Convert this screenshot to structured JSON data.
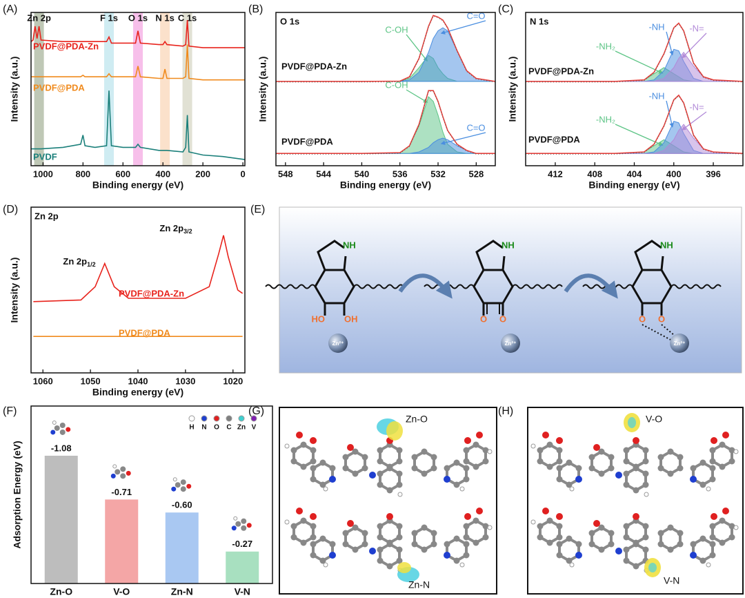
{
  "chart_data": [
    {
      "type": "line",
      "panel": "(A)",
      "x_label": "Binding energy (eV)",
      "y_label": "Intensity (a.u.)",
      "xlim": [
        1060,
        -10
      ],
      "xticks": [
        1000,
        800,
        600,
        400,
        200,
        0
      ],
      "ylim": [
        0,
        100
      ],
      "highlights": [
        {
          "label": "Zn 2p",
          "x": 1020,
          "color": "#8a9a7a"
        },
        {
          "label": "F 1s",
          "x": 670,
          "color": "#a8dde8"
        },
        {
          "label": "O 1s",
          "x": 525,
          "color": "#f08ad8"
        },
        {
          "label": "N 1s",
          "x": 390,
          "color": "#f8c8a0"
        },
        {
          "label": "C 1s",
          "x": 278,
          "color": "#c8c8b0"
        }
      ],
      "x": [
        1060,
        1050,
        1040,
        1030,
        1020,
        1010,
        900,
        812,
        800,
        790,
        740,
        682,
        670,
        658,
        600,
        537,
        525,
        513,
        420,
        400,
        390,
        380,
        300,
        286,
        278,
        270,
        200,
        100,
        -10
      ],
      "series": [
        {
          "name": "PVDF@PDA-Zn",
          "color": "#e8231c",
          "values": [
            81,
            82,
            91,
            83,
            91,
            82,
            81,
            81,
            81,
            81,
            81,
            81,
            84,
            80,
            80,
            80,
            88,
            80,
            79,
            79,
            81,
            79,
            78,
            79,
            95,
            78,
            77,
            77,
            77
          ]
        },
        {
          "name": "PVDF@PDA",
          "color": "#f08a1c",
          "values": [
            58,
            58,
            58,
            58,
            58,
            58,
            58,
            58,
            59,
            58,
            58,
            58,
            60,
            58,
            58,
            58,
            65,
            58,
            57,
            57,
            63,
            57,
            57,
            58,
            79,
            57,
            56,
            56,
            56
          ]
        },
        {
          "name": "PVDF",
          "color": "#1a7f7a",
          "values": [
            11,
            11,
            11,
            11,
            11,
            11,
            12,
            14,
            20,
            13,
            12,
            13,
            49,
            13,
            12,
            12,
            14,
            12,
            10,
            10,
            10,
            10,
            9,
            12,
            33,
            9,
            7,
            6,
            4
          ]
        }
      ]
    },
    {
      "type": "line",
      "panel": "(B)",
      "title": "O 1s",
      "x_label": "Binding energy (eV)",
      "y_label": "Intensity (a.u.)",
      "xlim": [
        549,
        526
      ],
      "xticks": [
        548,
        544,
        540,
        536,
        532,
        528
      ],
      "ylim": [
        0,
        100
      ],
      "x": [
        549,
        540,
        536,
        535,
        534,
        533,
        532.5,
        532,
        531.5,
        531,
        530,
        529,
        528,
        526
      ],
      "samples": [
        {
          "label": "PVDF@PDA-Zn",
          "series": [
            {
              "name": "C-OH",
              "color": "#5cc485",
              "values": [
                55,
                55,
                55.2,
                57,
                64,
                72,
                70,
                64,
                60,
                57,
                55,
                55,
                55,
                55
              ]
            },
            {
              "name": "C=O",
              "color": "#4a8ee0",
              "values": [
                55,
                55,
                55,
                56,
                61,
                74,
                83,
                88,
                90,
                88,
                75,
                62,
                57,
                55
              ]
            },
            {
              "color": "#e8413c",
              "values": [
                55,
                55,
                55.2,
                58,
                70,
                91,
                98,
                97,
                95,
                90,
                75,
                62,
                57,
                55
              ]
            }
          ]
        },
        {
          "label": "PVDF@PDA",
          "series": [
            {
              "name": "C-OH",
              "color": "#5cc485",
              "values": [
                8,
                8,
                8.5,
                13,
                26,
                45,
                42,
                33,
                22,
                14,
                9,
                8,
                8,
                8
              ]
            },
            {
              "name": "C=O",
              "color": "#4a8ee0",
              "values": [
                8,
                8,
                8,
                8,
                9,
                12,
                15,
                17,
                18,
                17,
                13,
                10,
                8,
                8
              ]
            },
            {
              "color": "#e8413c",
              "values": [
                8,
                8,
                8.5,
                13,
                27,
                49,
                49,
                42,
                32,
                23,
                14,
                10,
                8,
                8
              ]
            }
          ]
        }
      ]
    },
    {
      "type": "line",
      "panel": "(C)",
      "title": "N 1s",
      "x_label": "Binding energy (eV)",
      "y_label": "Intensity (a.u.)",
      "xlim": [
        415,
        393
      ],
      "xticks": [
        412,
        408,
        404,
        400,
        396
      ],
      "ylim": [
        0,
        100
      ],
      "x": [
        415,
        406,
        403,
        402,
        401,
        400,
        399.5,
        399,
        398,
        397,
        396,
        393
      ],
      "samples": [
        {
          "label": "PVDF@PDA-Zn",
          "series": [
            {
              "name": "-NH₂",
              "color": "#5cc485",
              "values": [
                55,
                55,
                56,
                60,
                64,
                60,
                58,
                56,
                55,
                55,
                55,
                55
              ]
            },
            {
              "name": "-NH",
              "color": "#4a8ee0",
              "values": [
                55,
                55,
                55,
                56,
                62,
                76,
                75,
                68,
                57,
                55,
                55,
                55
              ]
            },
            {
              "name": "-N=",
              "color": "#b28ad8",
              "values": [
                55,
                55,
                55,
                55,
                57,
                64,
                70,
                74,
                65,
                58,
                56,
                55
              ]
            },
            {
              "color": "#e8413c",
              "values": [
                55,
                55,
                56,
                61,
                73,
                90,
                93,
                88,
                67,
                58,
                56,
                55
              ]
            }
          ]
        },
        {
          "label": "PVDF@PDA",
          "series": [
            {
              "name": "-NH₂",
              "color": "#5cc485",
              "values": [
                8,
                8,
                9,
                13,
                17,
                13,
                11,
                9,
                8,
                8,
                8,
                8
              ]
            },
            {
              "name": "-NH",
              "color": "#4a8ee0",
              "values": [
                8,
                8,
                8,
                9,
                15,
                29,
                28,
                21,
                10,
                8,
                8,
                8
              ]
            },
            {
              "name": "-N=",
              "color": "#b28ad8",
              "values": [
                8,
                8,
                8,
                8,
                10,
                17,
                23,
                27,
                18,
                11,
                9,
                8
              ]
            },
            {
              "color": "#e8413c",
              "values": [
                8,
                8,
                9,
                14,
                26,
                43,
                46,
                41,
                20,
                11,
                9,
                8
              ]
            }
          ]
        }
      ]
    },
    {
      "type": "line",
      "panel": "(D)",
      "title": "Zn 2p",
      "x_label": "Binding energy (eV)",
      "y_label": "Intensity (a.u.)",
      "xlim": [
        1062.5,
        1017.5
      ],
      "xticks": [
        1060,
        1050,
        1040,
        1030,
        1020
      ],
      "ylim": [
        0,
        100
      ],
      "peak_labels": [
        {
          "text": "Zn 2p",
          "sub": "1/2"
        },
        {
          "text": "Zn 2p",
          "sub": "3/2"
        }
      ],
      "x": [
        1062,
        1052,
        1049,
        1047,
        1045,
        1042,
        1030,
        1025,
        1023,
        1022,
        1021,
        1019,
        1018
      ],
      "series": [
        {
          "name": "PVDF@PDA-Zn",
          "color": "#e8231c",
          "values": [
            43,
            44,
            52,
            66,
            52,
            45,
            45,
            52,
            72,
            83,
            70,
            50,
            48
          ]
        },
        {
          "name": "PVDF@PDA",
          "color": "#f08a1c",
          "values": [
            22,
            22,
            22,
            22,
            22,
            22,
            22,
            22,
            22,
            22,
            22,
            22,
            22
          ]
        }
      ]
    },
    {
      "type": "bar",
      "panel": "(F)",
      "y_label": "Adsorption Energy (eV)",
      "categories": [
        "Zn-O",
        "V-O",
        "Zn-N",
        "V-N"
      ],
      "values": [
        -1.08,
        -0.71,
        -0.6,
        -0.27
      ],
      "value_labels": [
        "-1.08",
        "-0.71",
        "-0.60",
        "-0.27"
      ],
      "colors": [
        "#bdbdbd",
        "#f4a6a6",
        "#a9c8f2",
        "#a8e0c0"
      ],
      "ylim": [
        0,
        -1.5
      ],
      "atom_legend": [
        {
          "name": "H",
          "color": "#ffffff"
        },
        {
          "name": "N",
          "color": "#1f3fd0"
        },
        {
          "name": "O",
          "color": "#e02020"
        },
        {
          "name": "C",
          "color": "#808080"
        },
        {
          "name": "Zn",
          "color": "#40d0d0"
        },
        {
          "name": "V",
          "color": "#8020b0"
        }
      ]
    }
  ],
  "scheme": {
    "panel": "(E)",
    "molecules": [
      {
        "nh": "NH",
        "left": "HO",
        "right": "OH",
        "ion": "Zn²⁺"
      },
      {
        "nh": "NH",
        "left": "O",
        "right": "O",
        "ion": "Zn²⁺"
      },
      {
        "nh": "NH",
        "left": "O",
        "right": "O",
        "ion": "Zn²⁺"
      }
    ]
  },
  "structures": [
    {
      "panel": "(G)",
      "labels": [
        "Zn-O",
        "Zn-N"
      ]
    },
    {
      "panel": "(H)",
      "labels": [
        "V-O",
        "V-N"
      ]
    }
  ]
}
